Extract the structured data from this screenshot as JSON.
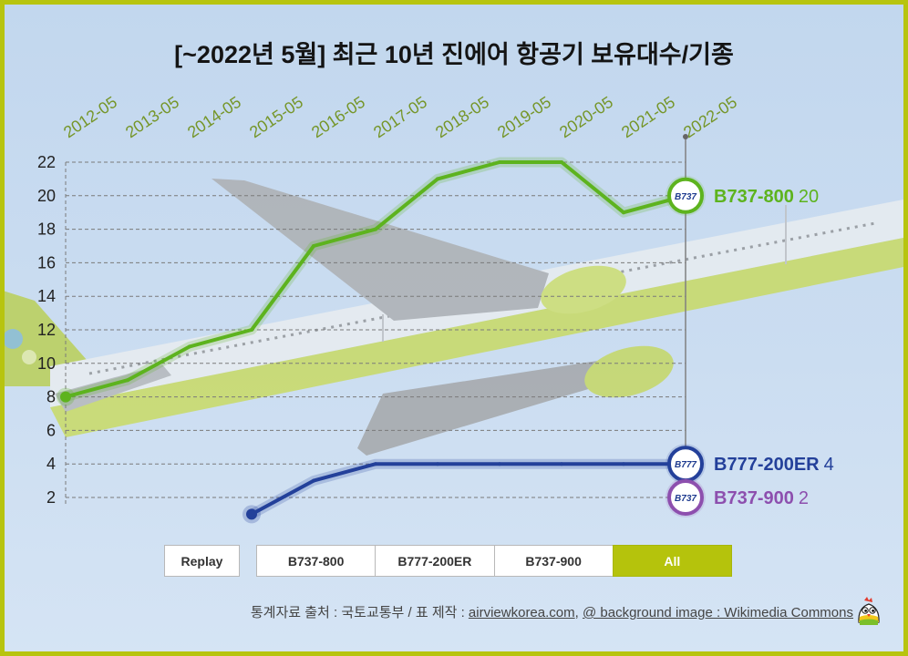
{
  "colors": {
    "frame": "#b7c40f",
    "sky": "#c9dcf0",
    "selected_button": "#b5c30c",
    "tick_label": "#76962a",
    "badge_text": "#1f3b8f"
  },
  "chart_data": {
    "type": "line",
    "title": "[~2022년 5월] 최근 10년 진에어 항공기 보유대수/기종",
    "xlabel": "",
    "ylabel": "",
    "x": [
      "2012-05",
      "2013-05",
      "2014-05",
      "2015-05",
      "2016-05",
      "2017-05",
      "2018-05",
      "2019-05",
      "2020-05",
      "2021-05",
      "2022-05"
    ],
    "yticks": [
      2,
      4,
      6,
      8,
      10,
      12,
      14,
      16,
      18,
      20,
      22
    ],
    "ylim": [
      1,
      22
    ],
    "grid": true,
    "legend_position": "right",
    "series": [
      {
        "name": "B737-800",
        "badge": "B737",
        "color": "#5db31e",
        "values": [
          8,
          9,
          11,
          12,
          17,
          18,
          21,
          22,
          22,
          19,
          20
        ]
      },
      {
        "name": "B777-200ER",
        "badge": "B777",
        "color": "#23409a",
        "values": [
          null,
          null,
          null,
          1,
          3,
          4,
          4,
          4,
          4,
          4,
          4
        ]
      },
      {
        "name": "B737-900",
        "badge": "B737",
        "color": "#8d4fae",
        "values": [
          null,
          null,
          null,
          null,
          null,
          null,
          null,
          null,
          null,
          null,
          2
        ]
      }
    ]
  },
  "controls": {
    "replay_label": "Replay",
    "filters": [
      "B737-800",
      "B777-200ER",
      "B737-900",
      "All"
    ],
    "selected_index": 3
  },
  "footer": {
    "source_prefix": "통계자료 출처 : 국토교통부 / 표 제작 : ",
    "site_link": "airviewkorea.com",
    "separator": ", ",
    "image_credit_link": "@ background image : Wikimedia Commons"
  }
}
